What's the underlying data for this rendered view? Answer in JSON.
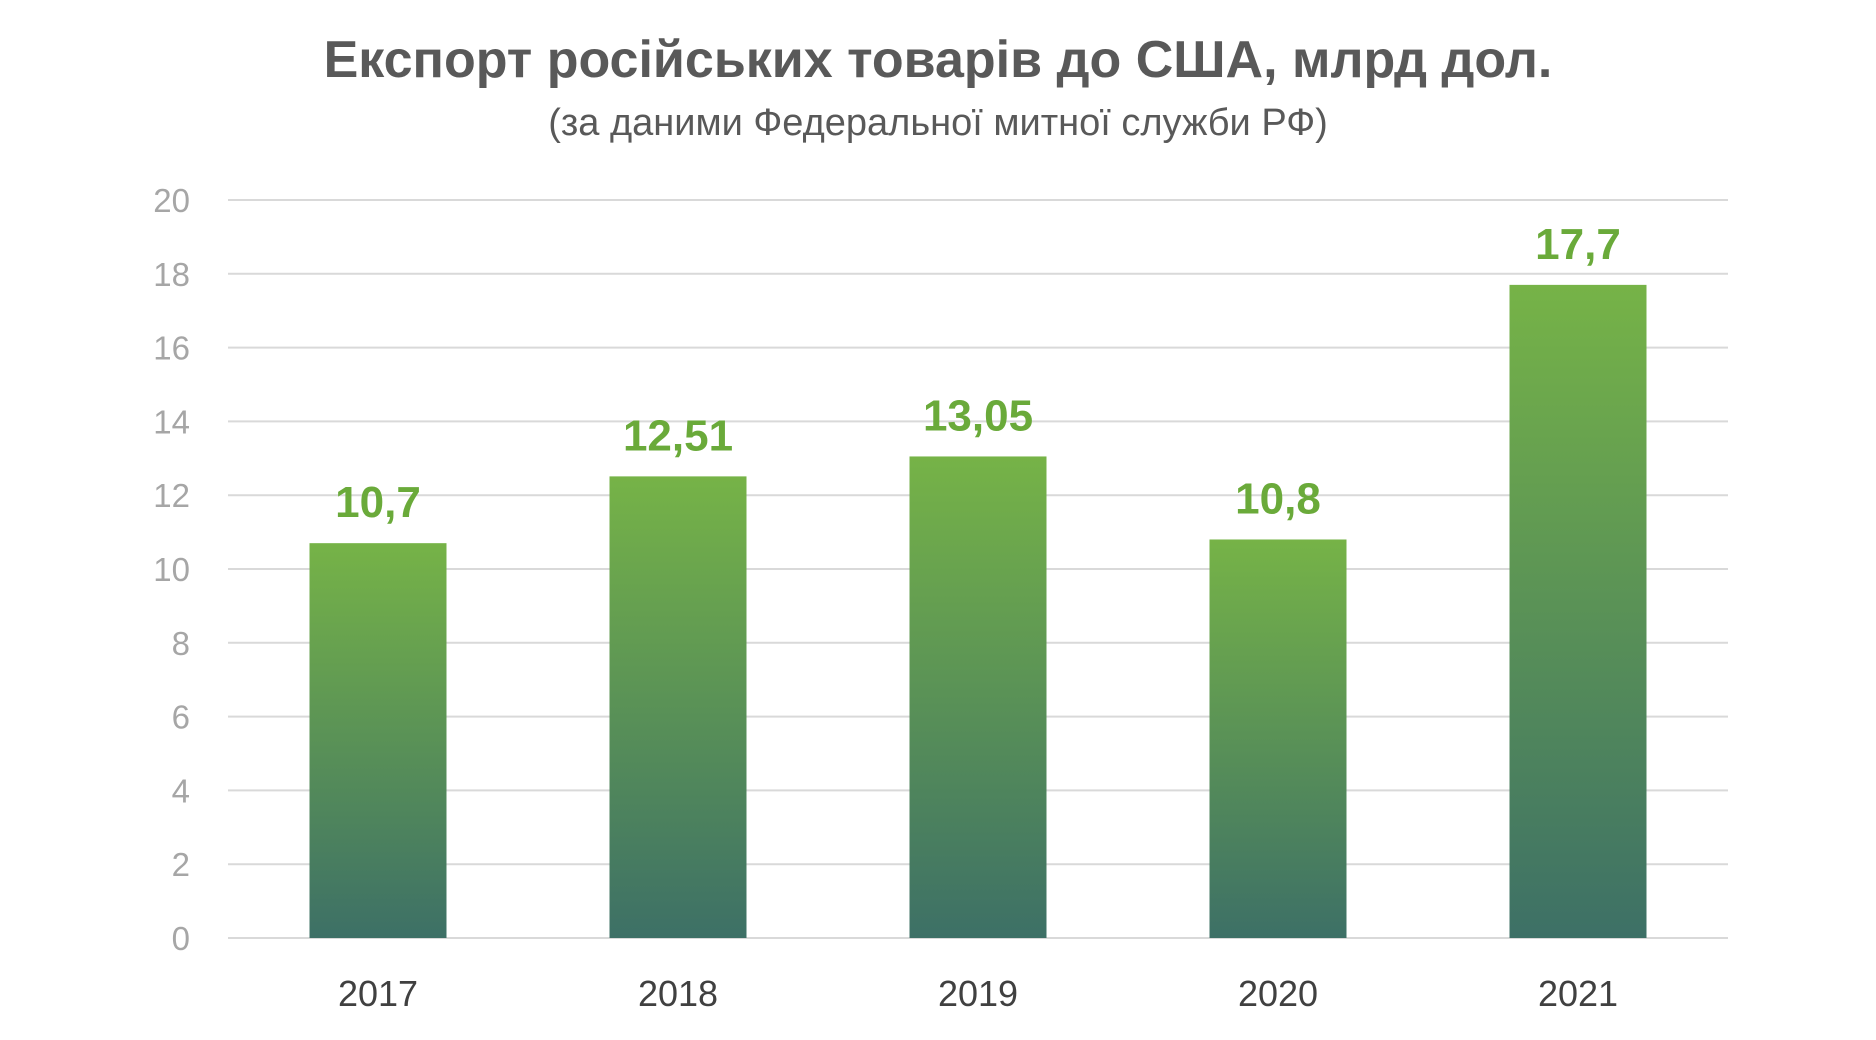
{
  "chart_data": {
    "type": "bar",
    "title": "Експорт російських товарів до США, млрд дол.",
    "subtitle": "(за даними Федеральної митної служби РФ)",
    "categories": [
      "2017",
      "2018",
      "2019",
      "2020",
      "2021"
    ],
    "values": [
      10.7,
      12.51,
      13.05,
      10.8,
      17.7
    ],
    "value_labels": [
      "10,7",
      "12,51",
      "13,05",
      "10,8",
      "17,7"
    ],
    "ylim": [
      0,
      20
    ],
    "yticks": [
      0,
      2,
      4,
      6,
      8,
      10,
      12,
      14,
      16,
      18,
      20
    ],
    "xlabel": "",
    "ylabel": "",
    "grid": true,
    "legend": "none",
    "colors": {
      "bar_top": "#76b347",
      "bar_bottom": "#3d7066",
      "label": "#6aaa3a",
      "grid": "#d9d9d9",
      "tick": "#a6a6a6",
      "category": "#404040",
      "title": "#595959"
    }
  }
}
